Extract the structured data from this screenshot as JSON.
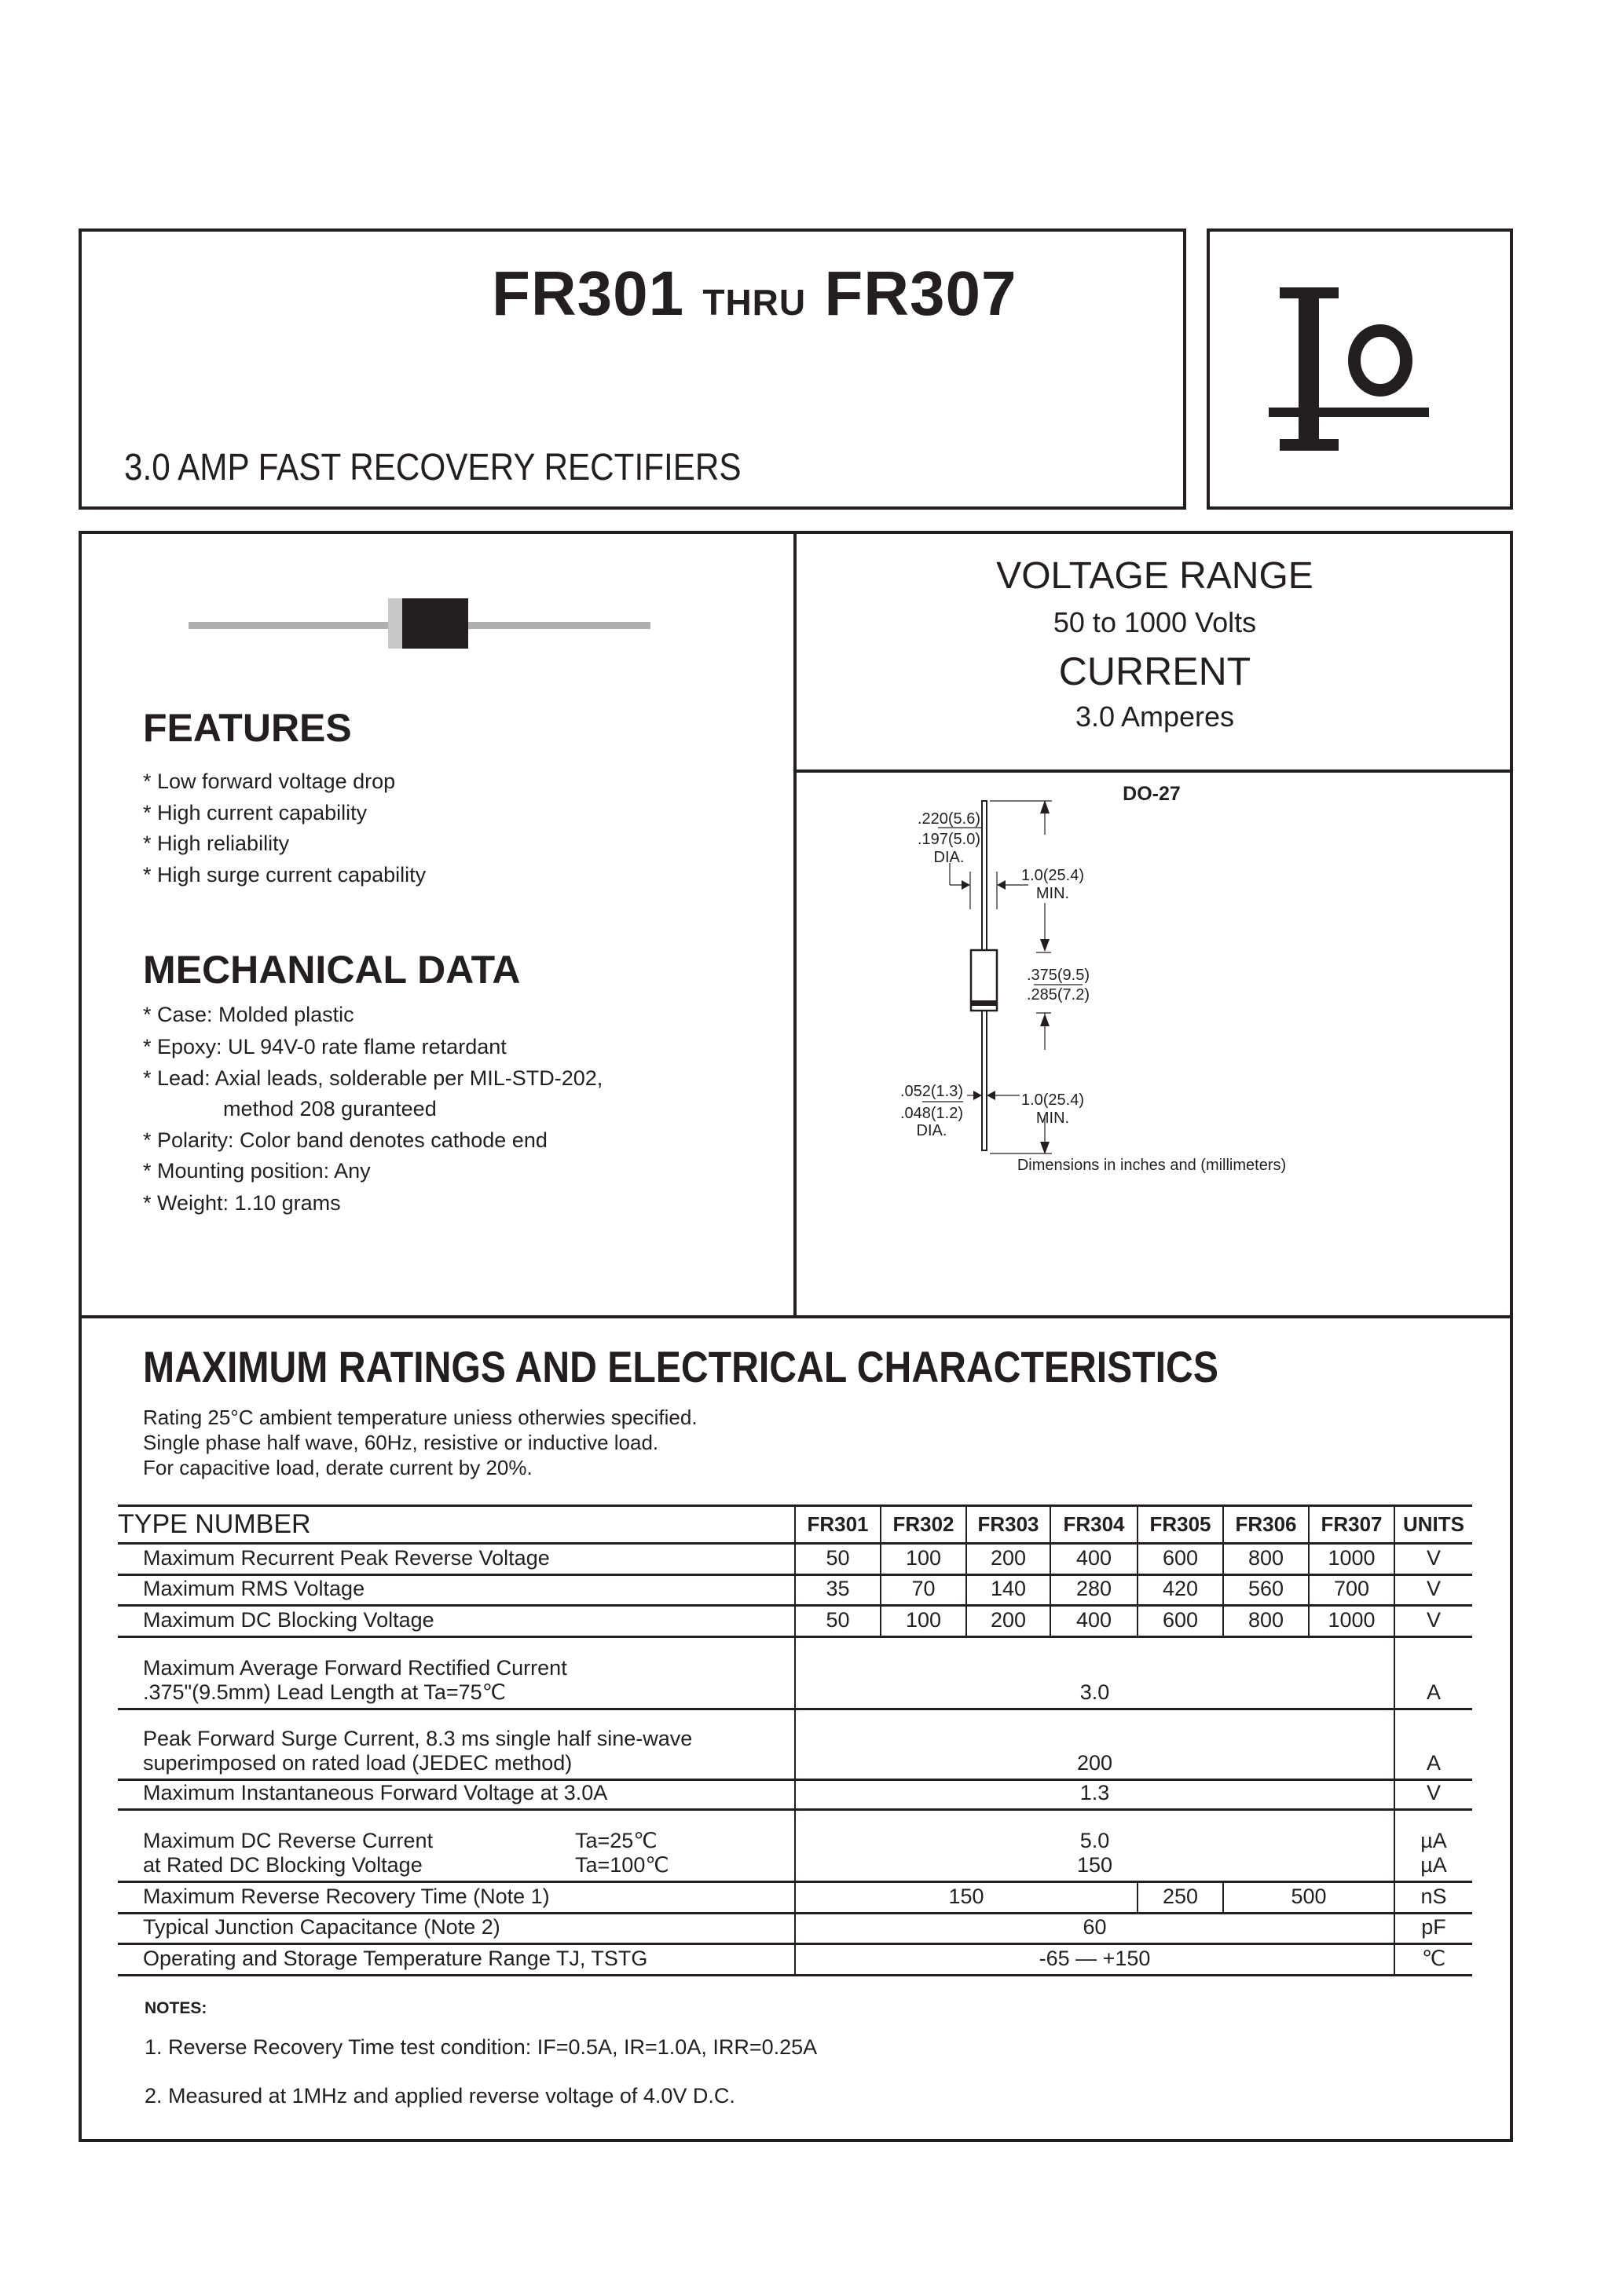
{
  "header": {
    "part_start": "FR301",
    "thru": "THRU",
    "part_end": "FR307",
    "subtitle": "3.0 AMP FAST RECOVERY RECTIFIERS",
    "logo_text": "Io"
  },
  "specs": {
    "voltage_label": "VOLTAGE RANGE",
    "voltage_value": "50 to 1000 Volts",
    "current_label": "CURRENT",
    "current_value": "3.0 Amperes"
  },
  "features": {
    "heading": "FEATURES",
    "items": [
      "* Low forward voltage drop",
      "* High current capability",
      "* High reliability",
      "* High surge current capability"
    ]
  },
  "mechanical": {
    "heading": "MECHANICAL DATA",
    "items": [
      "* Case: Molded plastic",
      "* Epoxy: UL 94V-0 rate flame retardant",
      "* Lead: Axial leads, solderable per MIL-STD-202,",
      "method 208 guranteed",
      "* Polarity: Color band denotes cathode end",
      "* Mounting position: Any",
      "* Weight: 1.10 grams"
    ]
  },
  "package": {
    "name": "DO-27",
    "body_dia_max": ".220(5.6)",
    "body_dia_min": ".197(5.0)",
    "dia": "DIA.",
    "lead_len": "1.0(25.4)",
    "min": "MIN.",
    "body_len_max": ".375(9.5)",
    "body_len_min": ".285(7.2)",
    "lead_dia_max": ".052(1.3)",
    "lead_dia_min": ".048(1.2)",
    "caption": "Dimensions in inches and (millimeters)"
  },
  "ratings": {
    "heading": "MAXIMUM RATINGS AND ELECTRICAL CHARACTERISTICS",
    "notes_lines": [
      "Rating 25°C ambient temperature uniess otherwies specified.",
      "Single phase half wave, 60Hz, resistive or inductive load.",
      "For capacitive load, derate current by 20%."
    ]
  },
  "table": {
    "type_header": "TYPE NUMBER",
    "columns": [
      "FR301",
      "FR302",
      "FR303",
      "FR304",
      "FR305",
      "FR306",
      "FR307"
    ],
    "units_header": "UNITS",
    "rows": [
      {
        "label": "Maximum Recurrent Peak Reverse Voltage",
        "values": [
          "50",
          "100",
          "200",
          "400",
          "600",
          "800",
          "1000"
        ],
        "unit": "V"
      },
      {
        "label": "Maximum RMS Voltage",
        "values": [
          "35",
          "70",
          "140",
          "280",
          "420",
          "560",
          "700"
        ],
        "unit": "V"
      },
      {
        "label": "Maximum DC Blocking Voltage",
        "values": [
          "50",
          "100",
          "200",
          "400",
          "600",
          "800",
          "1000"
        ],
        "unit": "V"
      },
      {
        "label": "Maximum Average Forward Rectified Current",
        "label2": ".375\"(9.5mm) Lead Length at Ta=75℃",
        "value": "3.0",
        "unit": "A"
      },
      {
        "label": "Peak Forward Surge Current, 8.3 ms single half sine-wave",
        "label2": "superimposed on rated load (JEDEC method)",
        "value": "200",
        "unit": "A"
      },
      {
        "label": "Maximum Instantaneous Forward Voltage at 3.0A",
        "value": "1.3",
        "unit": "V"
      },
      {
        "label": "Maximum DC Reverse Current",
        "cond": "Ta=25℃",
        "label2": "at Rated DC Blocking Voltage",
        "cond2": "Ta=100℃",
        "value": "5.0",
        "value2": "150",
        "unit": "µA",
        "unit2": "µA"
      },
      {
        "label": "Maximum Reverse Recovery Time (Note 1)",
        "values": [
          "150",
          "250",
          "500"
        ],
        "unit": "nS"
      },
      {
        "label": "Typical Junction Capacitance (Note 2)",
        "value": "60",
        "unit": "pF"
      },
      {
        "label": "Operating and Storage Temperature Range TJ, TSTG",
        "value": "-65 — +150",
        "unit": "℃"
      }
    ]
  },
  "notes": {
    "heading": "NOTES:",
    "items": [
      "1. Reverse Recovery Time test condition: IF=0.5A, IR=1.0A, IRR=0.25A",
      "2. Measured at 1MHz and applied reverse voltage of 4.0V D.C."
    ]
  }
}
